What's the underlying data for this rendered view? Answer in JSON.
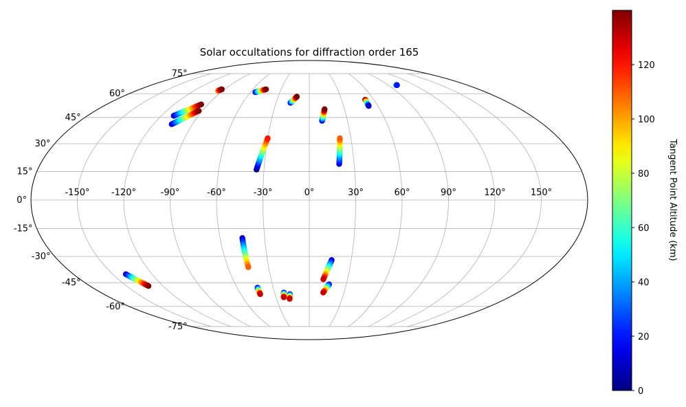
{
  "chart_data": {
    "type": "scatter",
    "projection": "mollweide",
    "title": "Solar occultations for diffraction order 165",
    "grid": true,
    "longitude_ticks": [
      "-150°",
      "-120°",
      "-90°",
      "-60°",
      "-30°",
      "0°",
      "30°",
      "60°",
      "90°",
      "120°",
      "150°"
    ],
    "longitude_values": [
      -150,
      -120,
      -90,
      -60,
      -30,
      0,
      30,
      60,
      90,
      120,
      150
    ],
    "latitude_ticks": [
      "-75°",
      "-60°",
      "-45°",
      "-30°",
      "-15°",
      "0°",
      "15°",
      "30°",
      "45°",
      "60°",
      "75°"
    ],
    "latitude_values": [
      -75,
      -60,
      -45,
      -30,
      -15,
      0,
      15,
      30,
      45,
      60,
      75
    ],
    "colorbar": {
      "label": "Tangent Point Altitude (km)",
      "ticks": [
        "0",
        "20",
        "40",
        "60",
        "80",
        "100",
        "120"
      ],
      "tick_values": [
        0,
        20,
        40,
        60,
        80,
        100,
        120
      ],
      "range": [
        0,
        140
      ],
      "colormap": "jet"
    },
    "tracks": [
      {
        "start": [
          -110,
          46
        ],
        "end": [
          -96,
          53
        ],
        "alt": [
          10,
          140
        ]
      },
      {
        "start": [
          -106,
          41
        ],
        "end": [
          -93,
          49
        ],
        "alt": [
          10,
          140
        ]
      },
      {
        "start": [
          -95,
          62
        ],
        "end": [
          -93,
          63
        ],
        "alt": [
          100,
          140
        ]
      },
      {
        "start": [
          -55,
          61
        ],
        "end": [
          -46,
          63
        ],
        "alt": [
          10,
          140
        ]
      },
      {
        "start": [
          -17,
          54
        ],
        "end": [
          -12,
          58
        ],
        "alt": [
          10,
          140
        ]
      },
      {
        "start": [
          -35,
          16
        ],
        "end": [
          -30,
          33
        ],
        "alt": [
          0,
          120
        ]
      },
      {
        "start": [
          10,
          43
        ],
        "end": [
          13,
          50
        ],
        "alt": [
          10,
          140
        ]
      },
      {
        "start": [
          20,
          19
        ],
        "end": [
          22,
          33
        ],
        "alt": [
          10,
          110
        ]
      },
      {
        "start": [
          52,
          56
        ],
        "end": [
          52,
          52
        ],
        "alt": [
          140,
          10
        ]
      },
      {
        "start": [
          99,
          66
        ],
        "end": [
          100,
          66
        ],
        "alt": [
          60,
          20
        ]
      },
      {
        "start": [
          -45,
          -20
        ],
        "end": [
          -45,
          -36
        ],
        "alt": [
          10,
          110
        ]
      },
      {
        "start": [
          -43,
          -48
        ],
        "end": [
          -43,
          -52
        ],
        "alt": [
          10,
          130
        ]
      },
      {
        "start": [
          -22,
          -51
        ],
        "end": [
          -23,
          -54
        ],
        "alt": [
          10,
          130
        ]
      },
      {
        "start": [
          -17,
          -52
        ],
        "end": [
          -18,
          -55
        ],
        "alt": [
          10,
          130
        ]
      },
      {
        "start": [
          16,
          -32
        ],
        "end": [
          11,
          -43
        ],
        "alt": [
          10,
          130
        ]
      },
      {
        "start": [
          16,
          -46
        ],
        "end": [
          12,
          -51
        ],
        "alt": [
          10,
          130
        ]
      },
      {
        "start": [
          -140,
          -40
        ],
        "end": [
          -132,
          -47
        ],
        "alt": [
          10,
          140
        ]
      }
    ]
  }
}
